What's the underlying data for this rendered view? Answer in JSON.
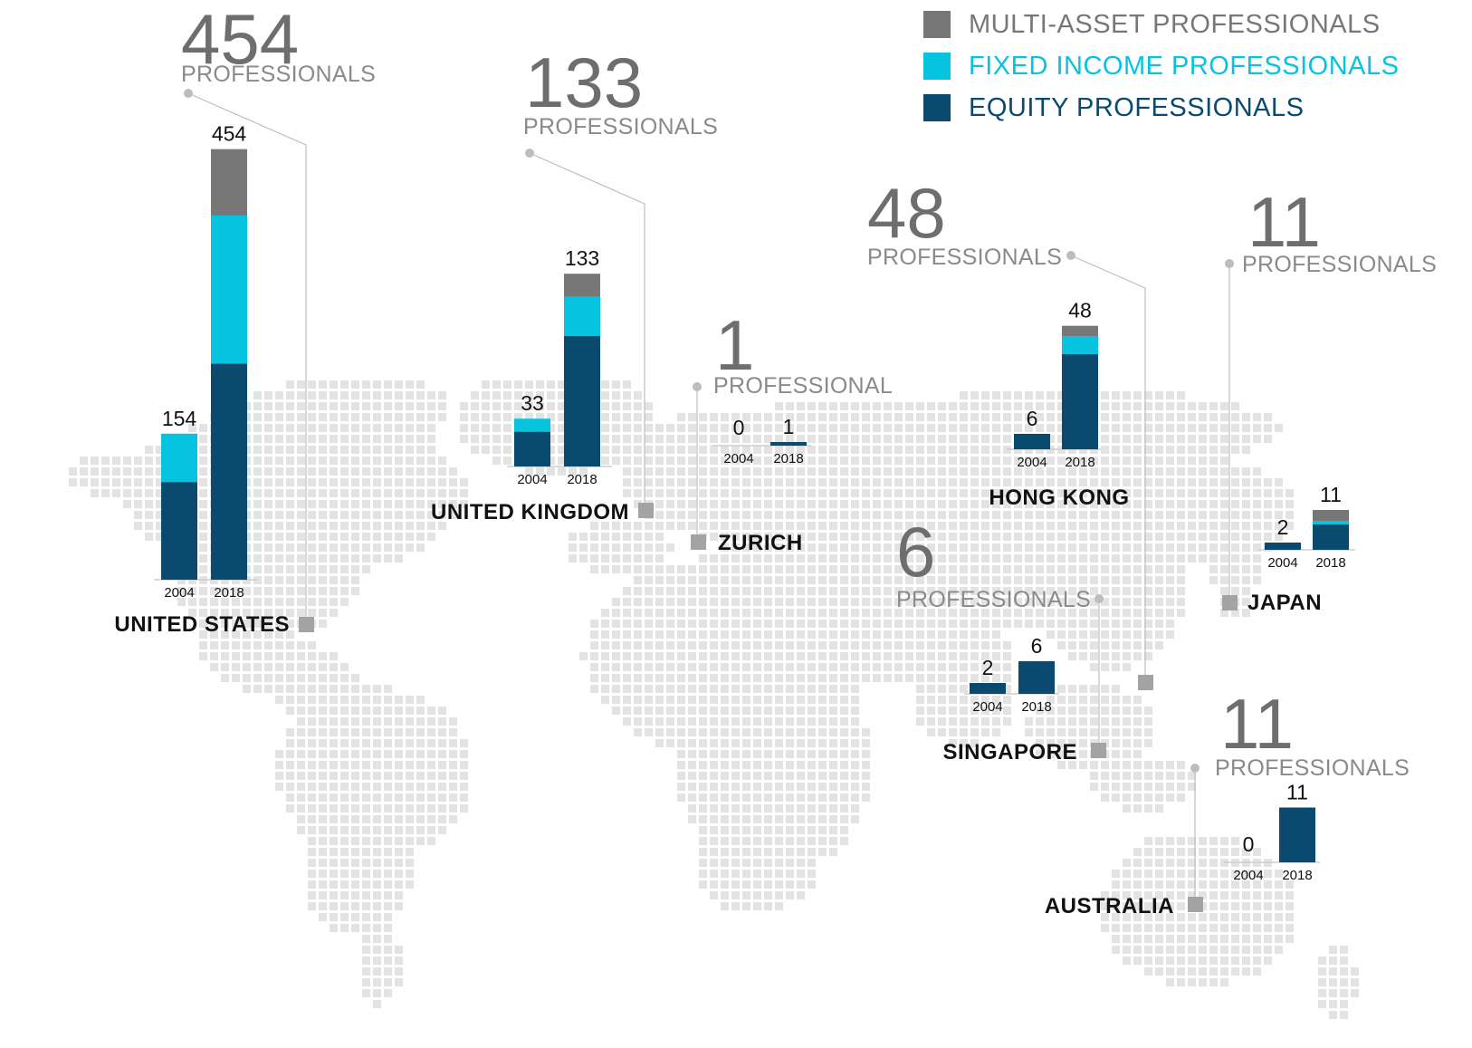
{
  "legend": [
    {
      "label": "MULTI-ASSET PROFESSIONALS",
      "color": "#777777",
      "text_color": "#777777"
    },
    {
      "label": "FIXED INCOME PROFESSIONALS",
      "color": "#06c4e0",
      "text_color": "#06c4e0"
    },
    {
      "label": "EQUITY PROFESSIONALS",
      "color": "#0a4a6e",
      "text_color": "#0a4a6e"
    }
  ],
  "colors": {
    "equity": "#0a4a6e",
    "fixed_income": "#06c4e0",
    "multi_asset": "#777777",
    "map_dot": "#e3e3e3",
    "leader": "#bdbdbd",
    "marker": "#a3a3a3"
  },
  "chart_data": {
    "type": "bar",
    "stacked": true,
    "categories": [
      "2004",
      "2018"
    ],
    "series_names": [
      "EQUITY PROFESSIONALS",
      "FIXED INCOME PROFESSIONALS",
      "MULTI-ASSET PROFESSIONALS"
    ],
    "locations": [
      {
        "name": "UNITED STATES",
        "total_number": "454",
        "unit": "PROFESSIONALS",
        "years": [
          {
            "year": "2004",
            "total": 154,
            "equity": 103,
            "fixed_income": 51,
            "multi_asset": 0
          },
          {
            "year": "2018",
            "total": 454,
            "equity": 228,
            "fixed_income": 156,
            "multi_asset": 70
          }
        ]
      },
      {
        "name": "UNITED KINGDOM",
        "total_number": "133",
        "unit": "PROFESSIONALS",
        "years": [
          {
            "year": "2004",
            "total": 33,
            "equity": 24,
            "fixed_income": 9,
            "multi_asset": 0
          },
          {
            "year": "2018",
            "total": 133,
            "equity": 90,
            "fixed_income": 27,
            "multi_asset": 16
          }
        ]
      },
      {
        "name": "ZURICH",
        "total_number": "1",
        "unit": "PROFESSIONAL",
        "years": [
          {
            "year": "2004",
            "total": 0,
            "equity": 0,
            "fixed_income": 0,
            "multi_asset": 0
          },
          {
            "year": "2018",
            "total": 1,
            "equity": 1,
            "fixed_income": 0,
            "multi_asset": 0
          }
        ]
      },
      {
        "name": "HONG KONG",
        "total_number": "48",
        "unit": "PROFESSIONALS",
        "years": [
          {
            "year": "2004",
            "total": 6,
            "equity": 6,
            "fixed_income": 0,
            "multi_asset": 0
          },
          {
            "year": "2018",
            "total": 48,
            "equity": 37,
            "fixed_income": 7,
            "multi_asset": 4
          }
        ]
      },
      {
        "name": "JAPAN",
        "total_number": "11",
        "unit": "PROFESSIONALS",
        "years": [
          {
            "year": "2004",
            "total": 2,
            "equity": 2,
            "fixed_income": 0,
            "multi_asset": 0
          },
          {
            "year": "2018",
            "total": 11,
            "equity": 7,
            "fixed_income": 1,
            "multi_asset": 3
          }
        ]
      },
      {
        "name": "SINGAPORE",
        "total_number": "6",
        "unit": "PROFESSIONALS",
        "years": [
          {
            "year": "2004",
            "total": 2,
            "equity": 2,
            "fixed_income": 0,
            "multi_asset": 0
          },
          {
            "year": "2018",
            "total": 6,
            "equity": 6,
            "fixed_income": 0,
            "multi_asset": 0
          }
        ]
      },
      {
        "name": "AUSTRALIA",
        "total_number": "11",
        "unit": "PROFESSIONALS",
        "years": [
          {
            "year": "2004",
            "total": 0,
            "equity": 0,
            "fixed_income": 0,
            "multi_asset": 0
          },
          {
            "year": "2018",
            "total": 11,
            "equity": 11,
            "fixed_income": 0,
            "multi_asset": 0
          }
        ]
      }
    ]
  }
}
